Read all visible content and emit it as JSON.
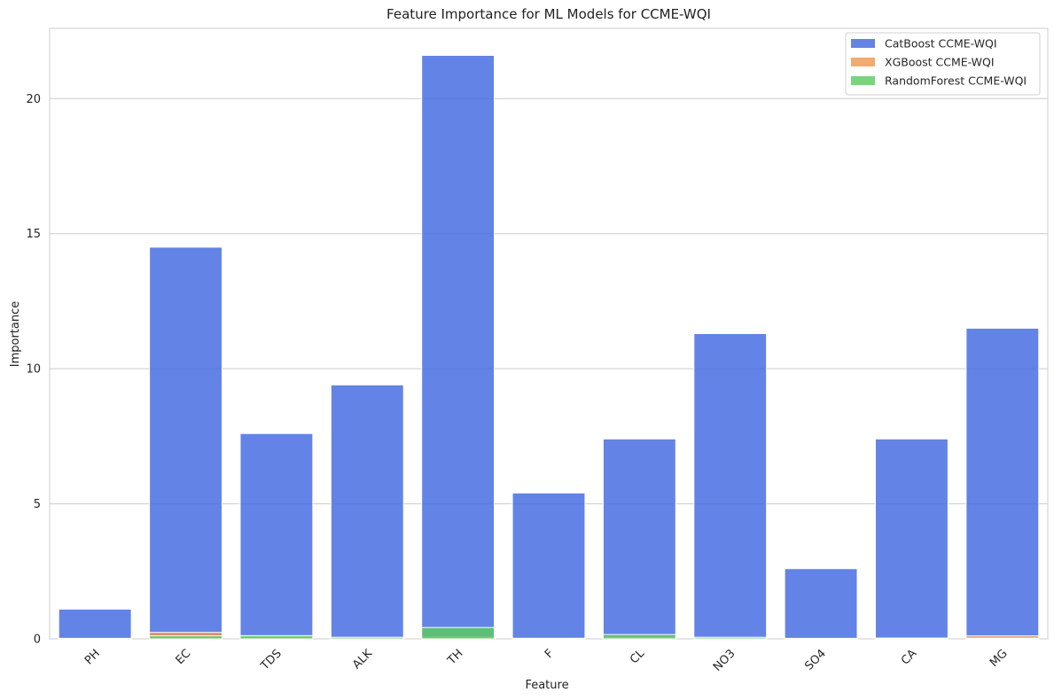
{
  "chart_data": {
    "type": "bar",
    "title": "Feature Importance for ML Models for CCME-WQI",
    "xlabel": "Feature",
    "ylabel": "Importance",
    "ylim": [
      0,
      22.6
    ],
    "yticks": [
      0,
      5,
      10,
      15,
      20
    ],
    "grid": "horizontal",
    "legend_position": "top-right",
    "categories": [
      "PH",
      "EC",
      "TDS",
      "ALK",
      "TH",
      "F",
      "CL",
      "NO3",
      "SO4",
      "CA",
      "MG"
    ],
    "series": [
      {
        "name": "CatBoost CCME-WQI",
        "color": "#4169e1",
        "values": [
          1.1,
          14.5,
          7.6,
          9.4,
          21.6,
          5.4,
          7.4,
          11.3,
          2.6,
          7.4,
          11.5
        ]
      },
      {
        "name": "XGBoost CCME-WQI",
        "color": "#f0974f",
        "values": [
          0.02,
          0.24,
          0.08,
          0.04,
          0.06,
          0.02,
          0.06,
          0.03,
          0.02,
          0.03,
          0.11
        ]
      },
      {
        "name": "RandomForest CCME-WQI",
        "color": "#5ec962",
        "values": [
          0.01,
          0.11,
          0.12,
          0.06,
          0.42,
          0.02,
          0.16,
          0.06,
          0.01,
          0.02,
          0.03
        ]
      }
    ]
  }
}
